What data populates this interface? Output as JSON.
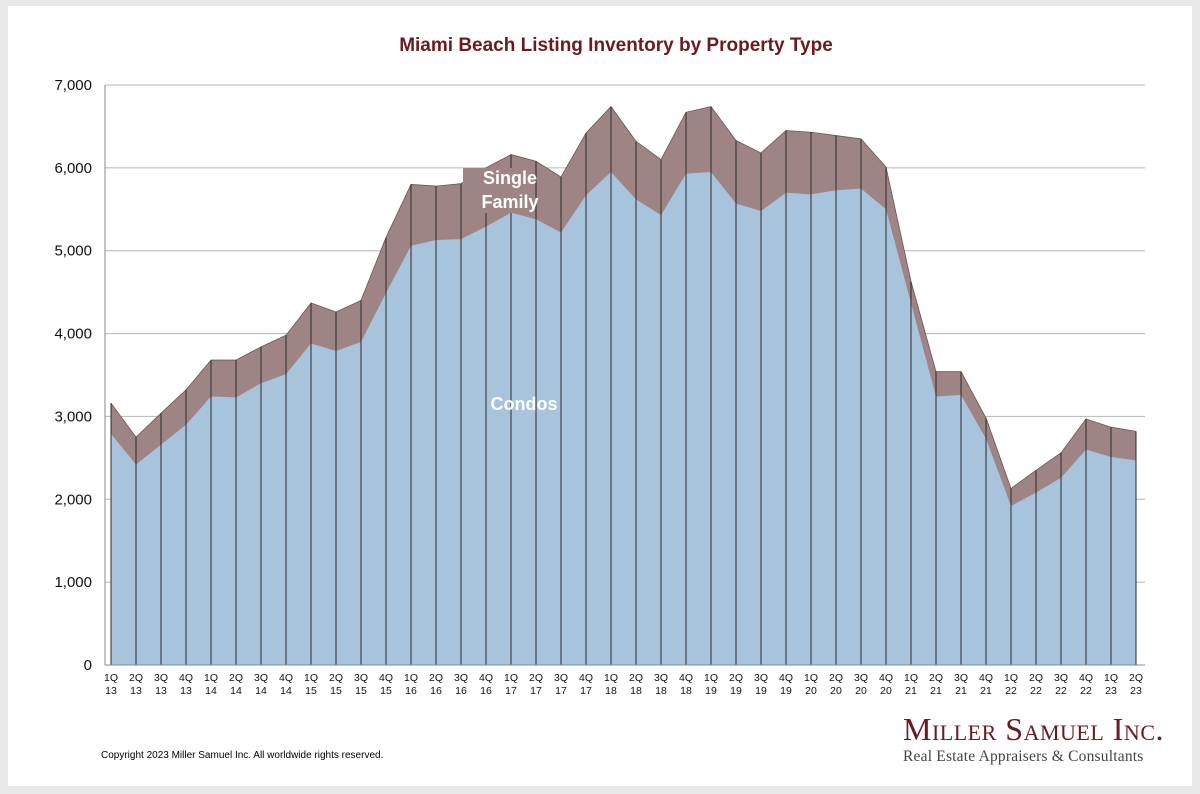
{
  "chart_data": {
    "type": "area",
    "stacked": true,
    "title": "Miami Beach Listing Inventory by Property Type",
    "xlabel": "",
    "ylabel": "",
    "ylim": [
      0,
      7000
    ],
    "yticks": [
      0,
      1000,
      2000,
      3000,
      4000,
      5000,
      6000,
      7000
    ],
    "ytick_labels": [
      "0",
      "1,000",
      "2,000",
      "3,000",
      "4,000",
      "5,000",
      "6,000",
      "7,000"
    ],
    "grid": true,
    "categories": [
      [
        "1Q",
        "13"
      ],
      [
        "2Q",
        "13"
      ],
      [
        "3Q",
        "13"
      ],
      [
        "4Q",
        "13"
      ],
      [
        "1Q",
        "14"
      ],
      [
        "2Q",
        "14"
      ],
      [
        "3Q",
        "14"
      ],
      [
        "4Q",
        "14"
      ],
      [
        "1Q",
        "15"
      ],
      [
        "2Q",
        "15"
      ],
      [
        "3Q",
        "15"
      ],
      [
        "4Q",
        "15"
      ],
      [
        "1Q",
        "16"
      ],
      [
        "2Q",
        "16"
      ],
      [
        "3Q",
        "16"
      ],
      [
        "4Q",
        "16"
      ],
      [
        "1Q",
        "17"
      ],
      [
        "2Q",
        "17"
      ],
      [
        "3Q",
        "17"
      ],
      [
        "4Q",
        "17"
      ],
      [
        "1Q",
        "18"
      ],
      [
        "2Q",
        "18"
      ],
      [
        "3Q",
        "18"
      ],
      [
        "4Q",
        "18"
      ],
      [
        "1Q",
        "19"
      ],
      [
        "2Q",
        "19"
      ],
      [
        "3Q",
        "19"
      ],
      [
        "4Q",
        "19"
      ],
      [
        "1Q",
        "20"
      ],
      [
        "2Q",
        "20"
      ],
      [
        "3Q",
        "20"
      ],
      [
        "4Q",
        "20"
      ],
      [
        "1Q",
        "21"
      ],
      [
        "2Q",
        "21"
      ],
      [
        "3Q",
        "21"
      ],
      [
        "4Q",
        "21"
      ],
      [
        "1Q",
        "22"
      ],
      [
        "2Q",
        "22"
      ],
      [
        "3Q",
        "22"
      ],
      [
        "4Q",
        "22"
      ],
      [
        "1Q",
        "23"
      ],
      [
        "2Q",
        "23"
      ]
    ],
    "series": [
      {
        "name": "Condos",
        "color": "#a7c4dc",
        "values": [
          2790,
          2420,
          2660,
          2900,
          3240,
          3230,
          3400,
          3510,
          3880,
          3790,
          3900,
          4490,
          5060,
          5130,
          5140,
          5290,
          5460,
          5380,
          5220,
          5670,
          5950,
          5620,
          5430,
          5930,
          5950,
          5570,
          5480,
          5700,
          5680,
          5730,
          5750,
          5500,
          4370,
          3240,
          3260,
          2730,
          1920,
          2080,
          2260,
          2600,
          2510,
          2470
        ]
      },
      {
        "name": "Single Family",
        "color": "#9e8484",
        "values": [
          370,
          330,
          380,
          420,
          440,
          450,
          440,
          470,
          490,
          470,
          500,
          670,
          740,
          650,
          670,
          710,
          700,
          700,
          670,
          750,
          790,
          700,
          670,
          740,
          790,
          760,
          700,
          750,
          750,
          660,
          600,
          510,
          260,
          300,
          280,
          250,
          210,
          270,
          300,
          370,
          360,
          350
        ]
      }
    ],
    "annotations": [
      {
        "series": "Single Family",
        "lines": [
          "Single",
          "Family"
        ]
      },
      {
        "series": "Condos",
        "lines": [
          "Condos"
        ]
      }
    ]
  },
  "footer": {
    "copyright": "Copyright 2023 Miller Samuel Inc.  All worldwide rights reserved."
  },
  "logo": {
    "name": "Miller Samuel Inc.",
    "tagline": "Real Estate Appraisers & Consultants"
  }
}
